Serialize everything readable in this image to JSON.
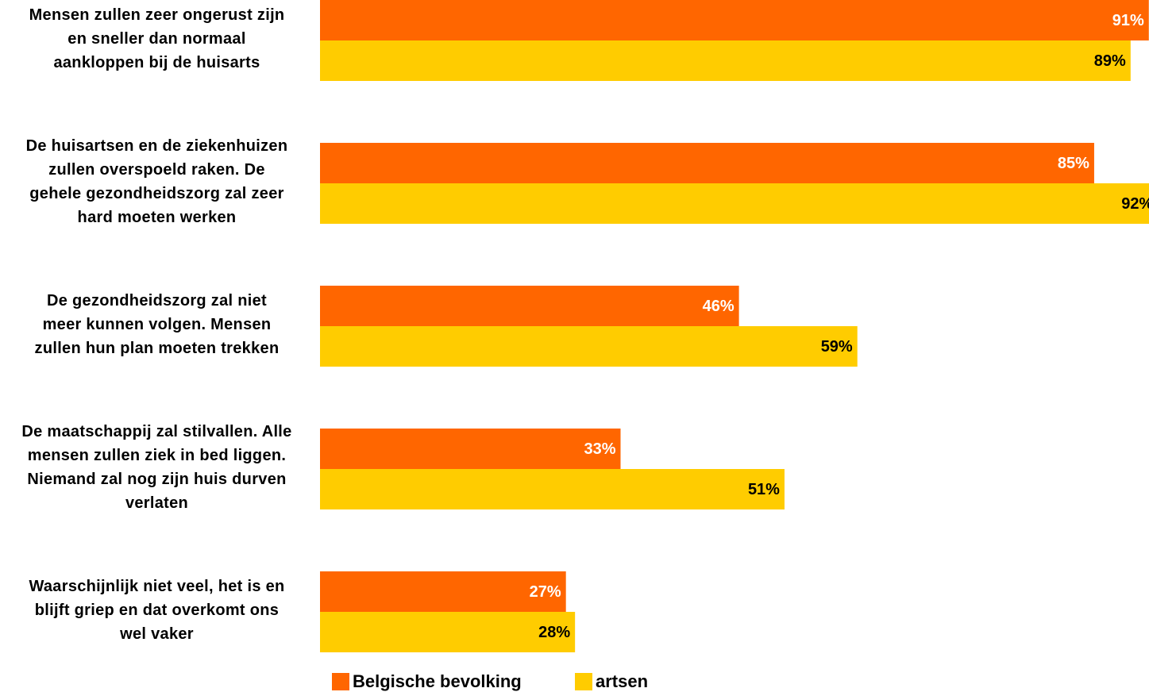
{
  "chart_data": {
    "type": "bar",
    "orientation": "horizontal",
    "categories": [
      "Mensen zullen zeer ongerust zijn\nen sneller dan normaal\naankloppen bij de huisarts",
      "De huisartsen en de ziekenhuizen\nzullen overspoeld raken. De\ngehele gezondheidszorg zal zeer\nhard moeten werken",
      "De gezondheidszorg zal niet\nmeer kunnen volgen. Mensen\nzullen hun plan moeten trekken",
      "De maatschappij zal stilvallen. Alle\nmensen zullen ziek in bed liggen.\nNiemand zal nog zijn huis durven\nverlaten",
      "Waarschijnlijk niet veel, het is en\nblijft griep en dat overkomt ons\nwel vaker"
    ],
    "series": [
      {
        "name": "Belgische bevolking",
        "color": "#ff6600",
        "label_color": "#ffffff",
        "values": [
          91,
          85,
          46,
          33,
          27
        ],
        "labels": [
          "91%",
          "85%",
          "46%",
          "33%",
          "27%"
        ]
      },
      {
        "name": "artsen",
        "color": "#ffcc00",
        "label_color": "#000000",
        "values": [
          89,
          92,
          59,
          51,
          28
        ],
        "labels": [
          "89%",
          "92%",
          "59%",
          "51%",
          "28%"
        ]
      }
    ],
    "xlim": [
      0,
      100
    ],
    "grid": false,
    "legend_position": "bottom"
  }
}
